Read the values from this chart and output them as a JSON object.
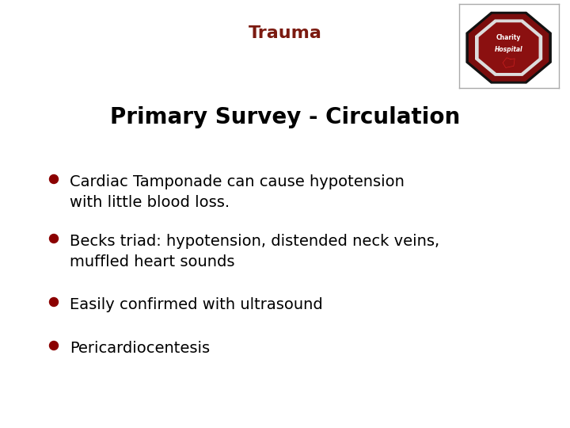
{
  "title": "Trauma",
  "title_color": "#7B1A10",
  "subtitle": "Primary Survey - Circulation",
  "subtitle_color": "#000000",
  "background_color": "#FFFFFF",
  "bullet_color": "#8B0000",
  "bullet_text_color": "#000000",
  "bullets": [
    "Cardiac Tamponade can cause hypotension\nwith little blood loss.",
    "Becks triad: hypotension, distended neck veins,\nmuffled heart sounds",
    "Easily confirmed with ultrasound",
    "Pericardiocentesis"
  ],
  "title_fontsize": 16,
  "subtitle_fontsize": 20,
  "bullet_fontsize": 14,
  "figsize": [
    7.2,
    5.4
  ],
  "dpi": 100
}
